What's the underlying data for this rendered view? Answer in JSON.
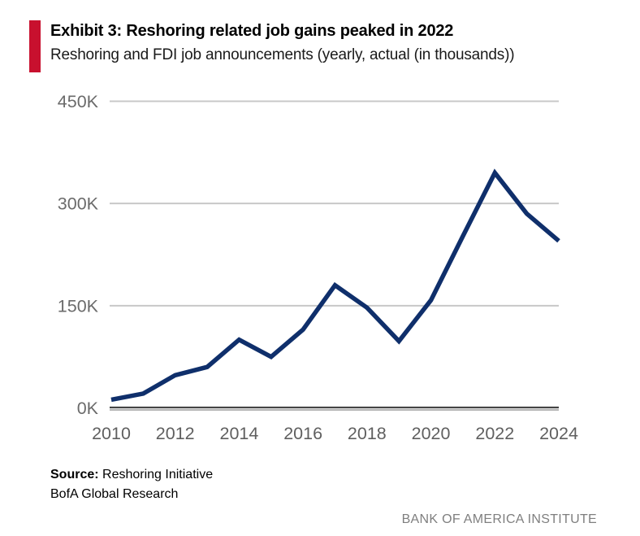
{
  "header": {
    "exhibit_title": "Exhibit 3: Reshoring related job gains peaked in 2022",
    "subtitle": "Reshoring and FDI job announcements (yearly, actual (in thousands))"
  },
  "chart_data": {
    "type": "line",
    "title": "Reshoring and FDI job announcements (yearly, actual (in thousands))",
    "x": [
      2010,
      2011,
      2012,
      2013,
      2014,
      2015,
      2016,
      2017,
      2018,
      2019,
      2020,
      2021,
      2022,
      2023,
      2024
    ],
    "series": [
      {
        "name": "Reshoring and FDI job announcements (thousands)",
        "values": [
          12,
          21,
          48,
          60,
          100,
          75,
          115,
          180,
          147,
          98,
          158,
          252,
          345,
          285,
          245
        ]
      }
    ],
    "unit": "K (thousands of jobs)",
    "ylim": [
      0,
      450
    ],
    "y_tick_values": [
      0,
      150,
      300,
      450
    ],
    "y_tick_labels": [
      "0K",
      "150K",
      "300K",
      "450K"
    ],
    "x_tick_values": [
      2010,
      2012,
      2014,
      2016,
      2018,
      2020,
      2022,
      2024
    ],
    "x_tick_labels": [
      "2010",
      "2012",
      "2014",
      "2016",
      "2018",
      "2020",
      "2022",
      "2024"
    ],
    "grid": "horizontal gridlines on",
    "legend": "none",
    "xlabel": "",
    "ylabel": ""
  },
  "colors": {
    "accent_red": "#c8102e",
    "line_navy": "#0f2f6b",
    "gridline_gray": "#c8c8c8",
    "baseline_dark": "#454545",
    "baseline_under_gray": "#b5b5b5",
    "tick_label_gray": "#5f5f5f",
    "y_label_gray": "#6b6b6b"
  },
  "footer": {
    "source_label": "Source:",
    "source_value": " Reshoring Initiative",
    "research_line": "BofA Global Research",
    "institute": "BANK OF AMERICA INSTITUTE"
  }
}
